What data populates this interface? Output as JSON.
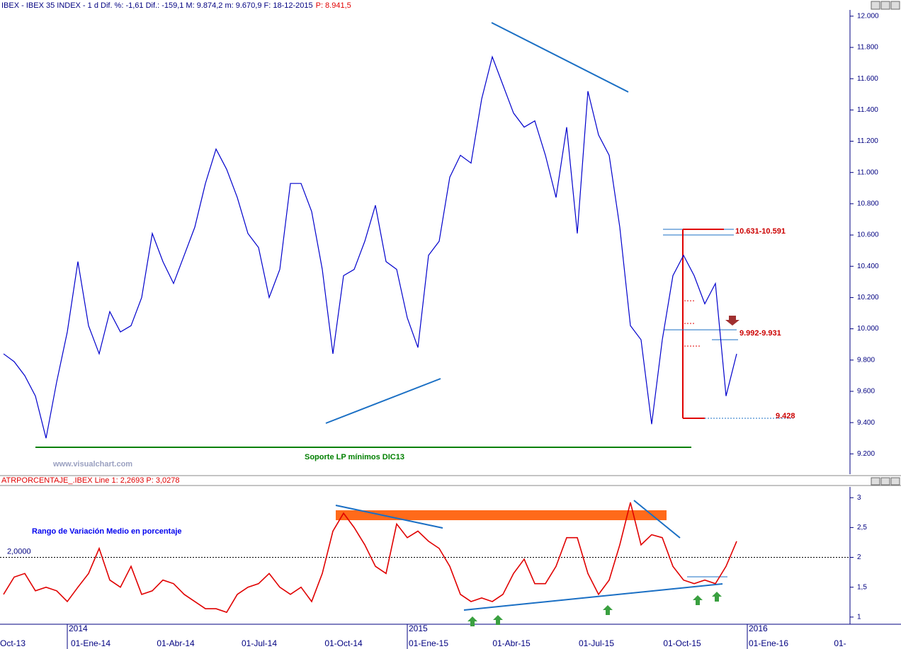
{
  "header": "IBEX - IBEX 35 INDEX - 1 d Dif. %: -1,61 Dif.: -159,1 M: 9.874,2 m: 9.670,9 F: 18-12-2015",
  "header_price": "P: 8.941,5",
  "chart_data": [
    {
      "type": "line",
      "color": "#0000cc",
      "values": [
        9840,
        9790,
        9700,
        9570,
        9300,
        9660,
        9980,
        10430,
        10020,
        9840,
        10110,
        9980,
        10020,
        10200,
        10610,
        10430,
        10290,
        10470,
        10650,
        10930,
        11150,
        11020,
        10840,
        10610,
        10520,
        10200,
        10380,
        10930,
        10930,
        10750,
        10380,
        9840,
        10340,
        10380,
        10560,
        10790,
        10430,
        10380,
        10070,
        9880,
        10470,
        10560,
        10970,
        11110,
        11060,
        11470,
        11740,
        11560,
        11380,
        11290,
        11330,
        11110,
        10840,
        11290,
        10610,
        11520,
        11240,
        11110,
        10650,
        10020,
        9930,
        9390,
        9930,
        10340,
        10470,
        10340,
        10160,
        10290,
        9570,
        9840
      ],
      "ylim": [
        9070,
        12040
      ],
      "yticks": [
        {
          "value": 9200,
          "label": "9.200"
        },
        {
          "value": 9400,
          "label": "9.400"
        },
        {
          "value": 9600,
          "label": "9.600"
        },
        {
          "value": 9800,
          "label": "9.800"
        },
        {
          "value": 10000,
          "label": "10.000"
        },
        {
          "value": 10200,
          "label": "10.200"
        },
        {
          "value": 10400,
          "label": "10.400"
        },
        {
          "value": 10600,
          "label": "10.600"
        },
        {
          "value": 10800,
          "label": "10.800"
        },
        {
          "value": 11000,
          "label": "11.000"
        },
        {
          "value": 11200,
          "label": "11.200"
        },
        {
          "value": 11400,
          "label": "11.400"
        },
        {
          "value": 11600,
          "label": "11.600"
        },
        {
          "value": 11800,
          "label": "11.800"
        },
        {
          "value": 12000,
          "label": "12.000"
        }
      ],
      "annotations": [
        "10.631-10.591",
        "9.992-9.931",
        "9.428",
        "Soporte LP mínimos DIC13",
        "www.visualchart.com"
      ]
    },
    {
      "type": "line",
      "color": "#e00000",
      "header": "ATRPORCENTAJE_.IBEX Line 1: 2,2693 P: 3,0278",
      "title": "Rango de Variación Medio en porcentaje",
      "values": [
        1.38,
        1.67,
        1.73,
        1.44,
        1.5,
        1.44,
        1.26,
        1.5,
        1.73,
        2.15,
        1.62,
        1.5,
        1.85,
        1.38,
        1.44,
        1.62,
        1.56,
        1.38,
        1.26,
        1.14,
        1.14,
        1.08,
        1.38,
        1.5,
        1.56,
        1.73,
        1.5,
        1.38,
        1.5,
        1.26,
        1.73,
        2.44,
        2.74,
        2.5,
        2.21,
        1.85,
        1.73,
        2.56,
        2.33,
        2.44,
        2.27,
        2.15,
        1.85,
        1.38,
        1.26,
        1.32,
        1.26,
        1.38,
        1.73,
        1.97,
        1.56,
        1.56,
        1.85,
        2.33,
        2.33,
        1.73,
        1.38,
        1.62,
        2.21,
        2.92,
        2.21,
        2.38,
        2.33,
        1.85,
        1.62,
        1.56,
        1.62,
        1.56,
        1.85,
        2.27
      ],
      "ylim": [
        0.88,
        3.18
      ],
      "yticks": [
        1,
        {
          "value": 1.5,
          "label": "1,5"
        },
        2,
        {
          "value": 2.5,
          "label": "2,5"
        },
        3
      ],
      "reference_line": {
        "value": 2,
        "label": "2,0000"
      },
      "x_labels": [
        "Oct-13",
        "01-Ene-14",
        "01-Abr-14",
        "01-Jul-14",
        "01-Oct-14",
        "01-Ene-15",
        "01-Abr-15",
        "01-Jul-15",
        "01-Oct-15",
        "01-Ene-16",
        "01-"
      ],
      "year_labels": [
        "2014",
        "2015",
        "2016"
      ]
    }
  ]
}
